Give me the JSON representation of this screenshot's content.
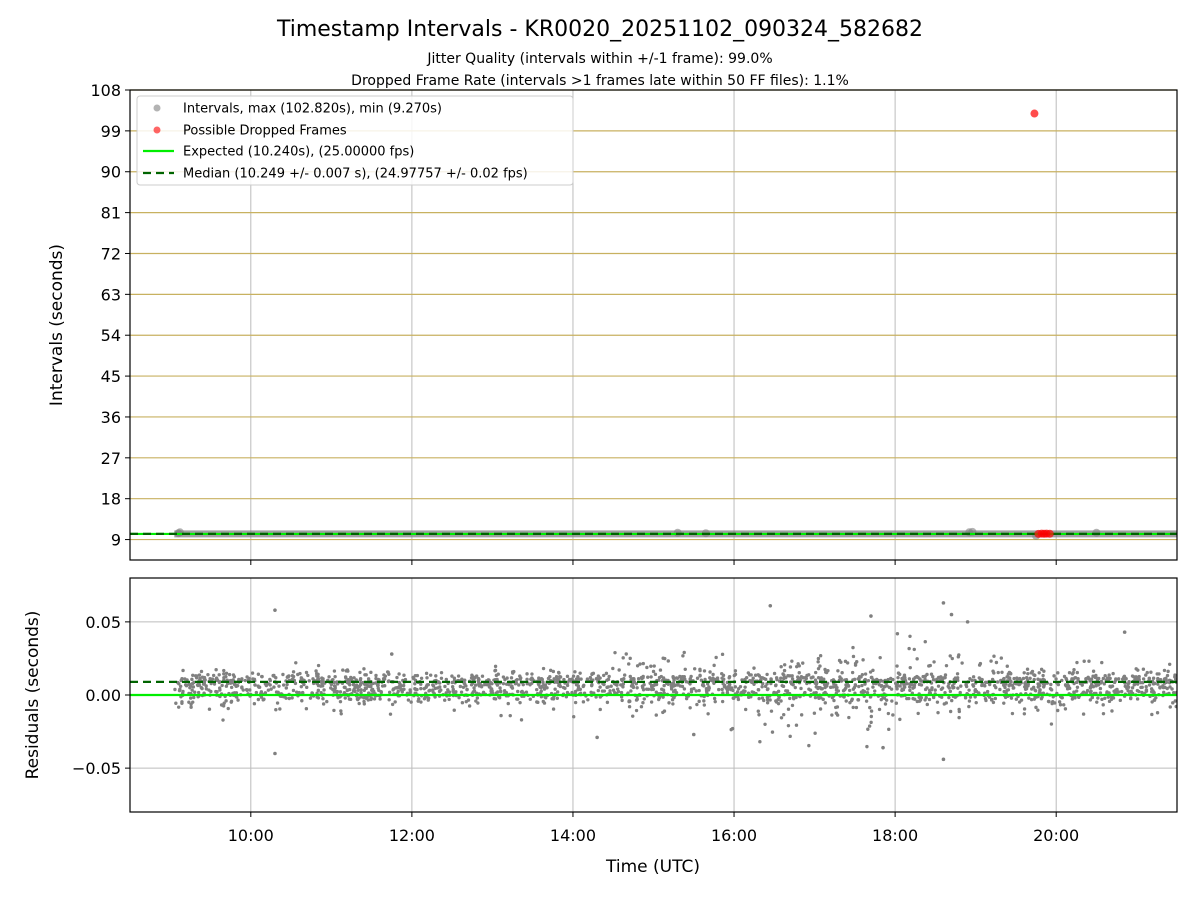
{
  "title": "Timestamp Intervals - KR0020_20251102_090324_582682",
  "subtitle_1": "Jitter Quality (intervals within +/-1 frame): 99.0%",
  "subtitle_2": "Dropped Frame Rate (intervals >1 frames late within 50 FF files): 1.1%",
  "colors": {
    "interval_points": "#808080",
    "dropped_points": "#ff0000",
    "expected_line": "#00ee00",
    "median_line": "#006400",
    "top_gridline": "#c8b160",
    "grid": "#bcbcbc"
  },
  "chart_data": [
    {
      "type": "scatter",
      "panel": "top",
      "ylabel": "Intervals (seconds)",
      "xlabel": "",
      "xlim_hours": [
        8.5,
        21.5
      ],
      "ylim": [
        4.5,
        108
      ],
      "yticks": [
        9,
        18,
        27,
        36,
        45,
        54,
        63,
        72,
        81,
        90,
        99,
        108
      ],
      "ytick_labels": [
        "9",
        "18",
        "27",
        "36",
        "45",
        "54",
        "63",
        "72",
        "81",
        "90",
        "99",
        "108"
      ],
      "xticks_hours": [
        10,
        12,
        14,
        16,
        18,
        20
      ],
      "grid": "both",
      "legend_location": "top-left",
      "legend": [
        "Intervals, max (102.820s), min (9.270s)",
        "Possible Dropped Frames",
        "Expected (10.240s), (25.00000 fps)",
        "Median (10.249 +/- 0.007 s), (24.97757 +/- 0.02 fps)"
      ],
      "expected_interval": 10.24,
      "median_interval": 10.249,
      "interval_max": 102.82,
      "interval_min": 9.27,
      "data_start_hour": 9.05,
      "data_end_hour": 21.5,
      "outlier_intervals": [
        {
          "t": 9.1,
          "v": 10.4
        },
        {
          "t": 9.12,
          "v": 10.6
        },
        {
          "t": 15.3,
          "v": 10.5
        },
        {
          "t": 15.65,
          "v": 10.4
        },
        {
          "t": 18.92,
          "v": 10.6
        },
        {
          "t": 18.96,
          "v": 10.7
        },
        {
          "t": 19.75,
          "v": 9.8
        },
        {
          "t": 20.5,
          "v": 10.5
        }
      ],
      "dropped_frames": [
        {
          "t": 19.73,
          "v": 102.82
        },
        {
          "t": 19.78,
          "v": 10.25
        },
        {
          "t": 19.82,
          "v": 10.3
        },
        {
          "t": 19.85,
          "v": 10.27
        },
        {
          "t": 19.88,
          "v": 10.3
        },
        {
          "t": 19.92,
          "v": 10.28
        }
      ]
    },
    {
      "type": "scatter",
      "panel": "bottom",
      "ylabel": "Residuals (seconds)",
      "xlabel": "Time (UTC)",
      "xlim_hours": [
        8.5,
        21.5
      ],
      "ylim": [
        -0.08,
        0.08
      ],
      "yticks": [
        -0.05,
        0.0,
        0.05
      ],
      "ytick_labels": [
        "−0.05",
        "0.00",
        "0.05"
      ],
      "xticks_hours": [
        10,
        12,
        14,
        16,
        18,
        20
      ],
      "xtick_labels": [
        "10:00",
        "12:00",
        "14:00",
        "16:00",
        "18:00",
        "20:00"
      ],
      "grid": "both",
      "expected_residual": 0.0,
      "median_residual": 0.009,
      "residual_sample_seed": 7,
      "residual_sample_count": 2300,
      "notable_residuals": [
        {
          "t": 10.3,
          "v": 0.058
        },
        {
          "t": 10.3,
          "v": -0.04
        },
        {
          "t": 16.45,
          "v": 0.061
        },
        {
          "t": 17.7,
          "v": 0.054
        },
        {
          "t": 18.6,
          "v": 0.063
        },
        {
          "t": 18.6,
          "v": -0.044
        },
        {
          "t": 18.7,
          "v": 0.055
        },
        {
          "t": 18.9,
          "v": 0.05
        },
        {
          "t": 17.85,
          "v": -0.036
        },
        {
          "t": 14.3,
          "v": -0.029
        },
        {
          "t": 20.85,
          "v": 0.043
        },
        {
          "t": 11.75,
          "v": 0.028
        },
        {
          "t": 15.5,
          "v": -0.027
        }
      ],
      "residual_volatility": [
        {
          "from": 9.05,
          "to": 14.5,
          "spread": 0.007
        },
        {
          "from": 14.5,
          "to": 16.0,
          "spread": 0.011
        },
        {
          "from": 16.0,
          "to": 19.2,
          "spread": 0.015
        },
        {
          "from": 19.2,
          "to": 21.5,
          "spread": 0.009
        }
      ]
    }
  ]
}
